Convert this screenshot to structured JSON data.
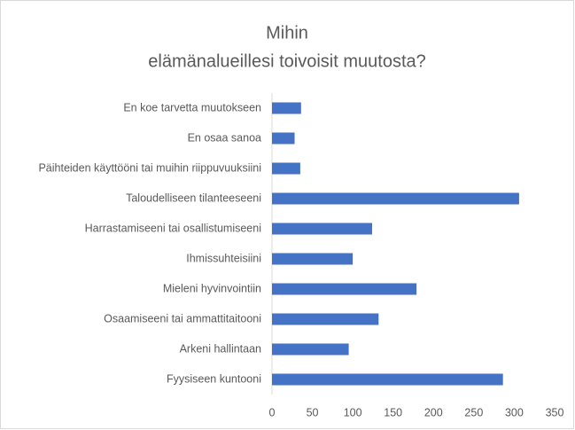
{
  "chart_data": {
    "type": "barh",
    "title": [
      "Mihin",
      "elämänalueillesi toivoisit muutosta?"
    ],
    "categories": [
      "En koe tarvetta muutokseen",
      "En osaa sanoa",
      "Päihteiden käyttööni tai muihin riippuvuuksiini",
      "Taloudelliseen tilanteeseeni",
      "Harrastamiseeni tai osallistumiseeni",
      "Ihmissuhteisiini",
      "Mieleni hyvinvointiin",
      "Osaamiseeni tai ammattitaitooni",
      "Arkeni hallintaan",
      "Fyysiseen kuntooni"
    ],
    "values": [
      36,
      28,
      35,
      306,
      124,
      100,
      179,
      132,
      95,
      286
    ],
    "color": "#4472c4",
    "xlim": [
      0,
      350
    ],
    "xticks": [
      0,
      50,
      100,
      150,
      200,
      250,
      300,
      350
    ],
    "grid": false
  }
}
